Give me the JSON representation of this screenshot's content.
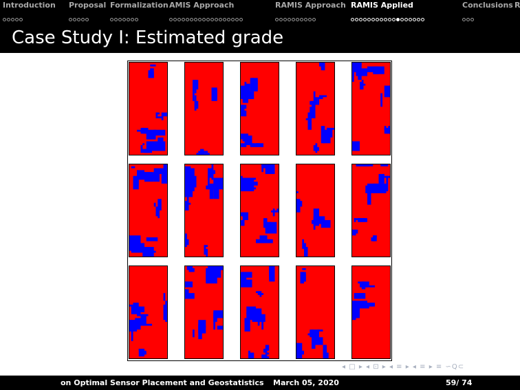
{
  "nav": {
    "sections": [
      {
        "label": "Introduction",
        "dots": 5,
        "filled": -1,
        "active": false
      },
      {
        "label": "Proposal",
        "dots": 5,
        "filled": -1,
        "active": false
      },
      {
        "label": "Formalization",
        "dots": 7,
        "filled": -1,
        "active": false
      },
      {
        "label": "AMIS Approach",
        "dots": 18,
        "filled": -1,
        "active": false
      },
      {
        "label": "RAMIS Approach",
        "dots": 10,
        "filled": -1,
        "active": false
      },
      {
        "label": "RAMIS Applied",
        "dots": 18,
        "filled": 11,
        "active": true
      },
      {
        "label": "Conclusions",
        "dots": 3,
        "filled": -1,
        "active": false
      },
      {
        "label": "R",
        "dots": 0,
        "filled": -1,
        "active": false
      }
    ]
  },
  "slide": {
    "title": "Case Study I: Estimated grade"
  },
  "figure": {
    "rows": 3,
    "cols": 5,
    "colors": {
      "fill": "#ff0000",
      "blob": "#0000ff"
    }
  },
  "navigation_symbols": "◂ □ ▸ ◂ ⊡ ▸ ◂ ≡ ▸ ◂ ≡ ▸ ≡ ∽Q⊂",
  "footer": {
    "left": "on Optimal Sensor Placement and Geostatistics",
    "date": "March 05, 2020",
    "page": "59/ 74"
  }
}
